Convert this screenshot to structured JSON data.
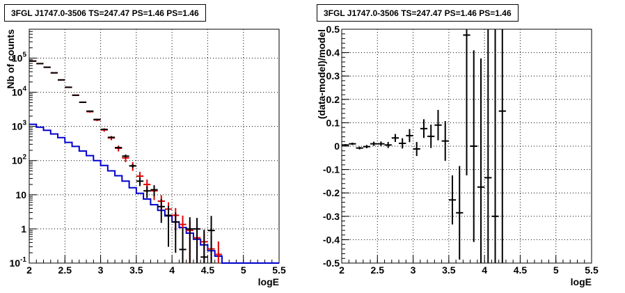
{
  "chart_data": [
    {
      "type": "line",
      "title": "3FGL J1747.0-3506 TS=247.47 PS=1.46 PS=1.46",
      "xlabel": "logE",
      "ylabel": "Nb of counts",
      "xlim": [
        2,
        5.5
      ],
      "ylim": [
        0.1,
        700000
      ],
      "yscale": "log",
      "grid": true,
      "x_ticks": [
        "2",
        "2.5",
        "3",
        "3.5",
        "4",
        "4.5",
        "5",
        "5.5"
      ],
      "y_ticks": [
        "10^{-1}",
        "1",
        "10",
        "10^{2}",
        "10^{3}",
        "10^{4}",
        "10^{5}"
      ],
      "colors": {
        "data": "#000000",
        "model": "#dd0000",
        "component": "#0000cc"
      },
      "series": [
        {
          "kind": "points",
          "color": "#000000",
          "x": [
            2.05,
            2.15,
            2.25,
            2.35,
            2.45,
            2.55,
            2.65,
            2.75,
            2.85,
            2.95,
            3.05,
            3.15,
            3.25,
            3.35,
            3.45,
            3.55,
            3.65,
            3.75,
            3.85,
            3.95,
            4.05,
            4.15,
            4.25,
            4.35,
            4.45,
            4.55
          ],
          "y": [
            82000,
            69000,
            54000,
            37000,
            23000,
            14000,
            8200,
            5100,
            2800,
            1600,
            820,
            480,
            240,
            135,
            70,
            25,
            13,
            14,
            4.5,
            2.5,
            1.6,
            0.25,
            1.0,
            1.0,
            0.15,
            0.9
          ],
          "err": [
            400,
            350,
            300,
            250,
            200,
            150,
            120,
            90,
            70,
            50,
            35,
            25,
            18,
            14,
            9,
            7,
            5,
            5,
            3,
            2.2,
            1.4,
            0.8,
            1.2,
            1.1,
            0.8,
            1.5
          ]
        },
        {
          "kind": "points",
          "color": "#dd0000",
          "x": [
            2.05,
            2.15,
            2.25,
            2.35,
            2.45,
            2.55,
            2.65,
            2.75,
            2.85,
            2.95,
            3.05,
            3.15,
            3.25,
            3.35,
            3.45,
            3.55,
            3.65,
            3.75,
            3.85,
            3.95,
            4.05,
            4.15,
            4.25,
            4.35,
            4.45,
            4.55,
            4.65
          ],
          "y": [
            82000,
            69000,
            54000,
            37000,
            23000,
            14000,
            8200,
            5100,
            2700,
            1550,
            790,
            460,
            230,
            120,
            70,
            35,
            20,
            13,
            6.5,
            3.8,
            2.5,
            1.35,
            0.9,
            0.55,
            0.42,
            0.26,
            0.18
          ],
          "err": [
            900,
            800,
            700,
            600,
            480,
            380,
            290,
            230,
            170,
            120,
            90,
            65,
            45,
            30,
            20,
            12,
            8,
            6,
            3.2,
            2.2,
            1.6,
            1.1,
            0.8,
            0.55,
            0.45,
            0.35,
            0.25
          ]
        },
        {
          "kind": "step",
          "color": "#0000cc",
          "edges": [
            2.0,
            2.1,
            2.2,
            2.3,
            2.4,
            2.5,
            2.6,
            2.7,
            2.8,
            2.9,
            3.0,
            3.1,
            3.2,
            3.3,
            3.4,
            3.5,
            3.6,
            3.7,
            3.8,
            3.9,
            4.0,
            4.1,
            4.2,
            4.3,
            4.4,
            4.5,
            4.6,
            4.7,
            4.8,
            4.9,
            5.0,
            5.1,
            5.2,
            5.3,
            5.4,
            5.5
          ],
          "values": [
            1150,
            950,
            770,
            600,
            470,
            340,
            260,
            190,
            140,
            100,
            72,
            50,
            36,
            25,
            16,
            11,
            7.5,
            5.1,
            3.5,
            2.4,
            1.6,
            1.1,
            0.75,
            0.5,
            0.34,
            0.23,
            0.16,
            0.1,
            0.1,
            0.1,
            0.1,
            0.1,
            0.1,
            0.1,
            0.1
          ]
        }
      ]
    },
    {
      "type": "scatter",
      "title": "3FGL J1747.0-3506 TS=247.47 PS=1.46 PS=1.46",
      "xlabel": "logE",
      "ylabel": "(data-model)/model",
      "xlim": [
        2,
        5.5
      ],
      "ylim": [
        -0.5,
        0.5
      ],
      "grid": true,
      "x_ticks": [
        "2",
        "2.5",
        "3",
        "3.5",
        "4",
        "4.5",
        "5",
        "5.5"
      ],
      "y_ticks": [
        "-0.5",
        "-0.4",
        "-0.3",
        "-0.2",
        "-0.1",
        "0",
        "0.1",
        "0.2",
        "0.3",
        "0.4",
        "0.5"
      ],
      "series": [
        {
          "color": "#000000",
          "x": [
            2.05,
            2.15,
            2.25,
            2.35,
            2.45,
            2.55,
            2.65,
            2.75,
            2.85,
            2.95,
            3.05,
            3.15,
            3.25,
            3.35,
            3.45,
            3.55,
            3.65,
            3.75,
            3.85,
            3.95,
            4.05,
            4.15,
            4.25
          ],
          "y": [
            0.005,
            0.01,
            -0.008,
            -0.002,
            0.01,
            0.01,
            0.005,
            0.035,
            0.012,
            0.045,
            -0.012,
            0.075,
            0.042,
            0.09,
            0.022,
            -0.23,
            -0.285,
            0.475,
            0.0,
            -0.175,
            -0.135,
            -0.3,
            0.15
          ],
          "err": [
            0.004,
            0.005,
            0.006,
            0.007,
            0.009,
            0.01,
            0.013,
            0.017,
            0.022,
            0.028,
            0.03,
            0.04,
            0.05,
            0.065,
            0.085,
            0.105,
            0.2,
            0.6,
            0.41,
            0.55,
            0.7,
            0.8,
            0.9
          ]
        }
      ]
    }
  ]
}
